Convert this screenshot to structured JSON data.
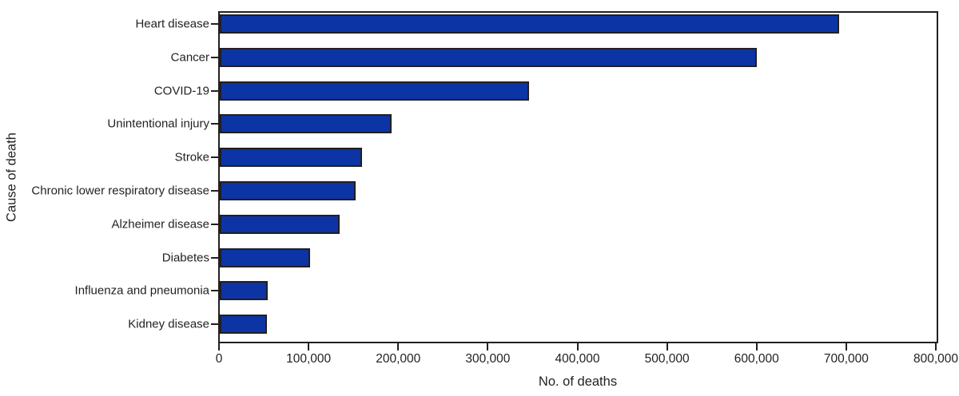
{
  "chart_data": {
    "type": "bar",
    "orientation": "horizontal",
    "title": "",
    "xlabel": "No. of deaths",
    "ylabel": "Cause of death",
    "xlim": [
      0,
      800000
    ],
    "grid": false,
    "legend": null,
    "x_tick_values": [
      0,
      100000,
      200000,
      300000,
      400000,
      500000,
      600000,
      700000,
      800000
    ],
    "x_tick_labels": [
      "0",
      "100,000",
      "200,000",
      "300,000",
      "400,000",
      "500,000",
      "600,000",
      "700,000",
      "800,000"
    ],
    "categories": [
      "Heart disease",
      "Cancer",
      "COVID-19",
      "Unintentional injury",
      "Stroke",
      "Chronic lower respiratory disease",
      "Alzheimer disease",
      "Diabetes",
      "Influenza and pneumonia",
      "Kidney disease"
    ],
    "values": [
      690882,
      598932,
      345323,
      192176,
      159050,
      151637,
      133382,
      101106,
      53495,
      52260
    ],
    "colors": {
      "bar_fill": "#0c34a4",
      "bar_border": "#231f20",
      "axis": "#231f20",
      "text": "#231f20",
      "background": "#ffffff"
    }
  }
}
